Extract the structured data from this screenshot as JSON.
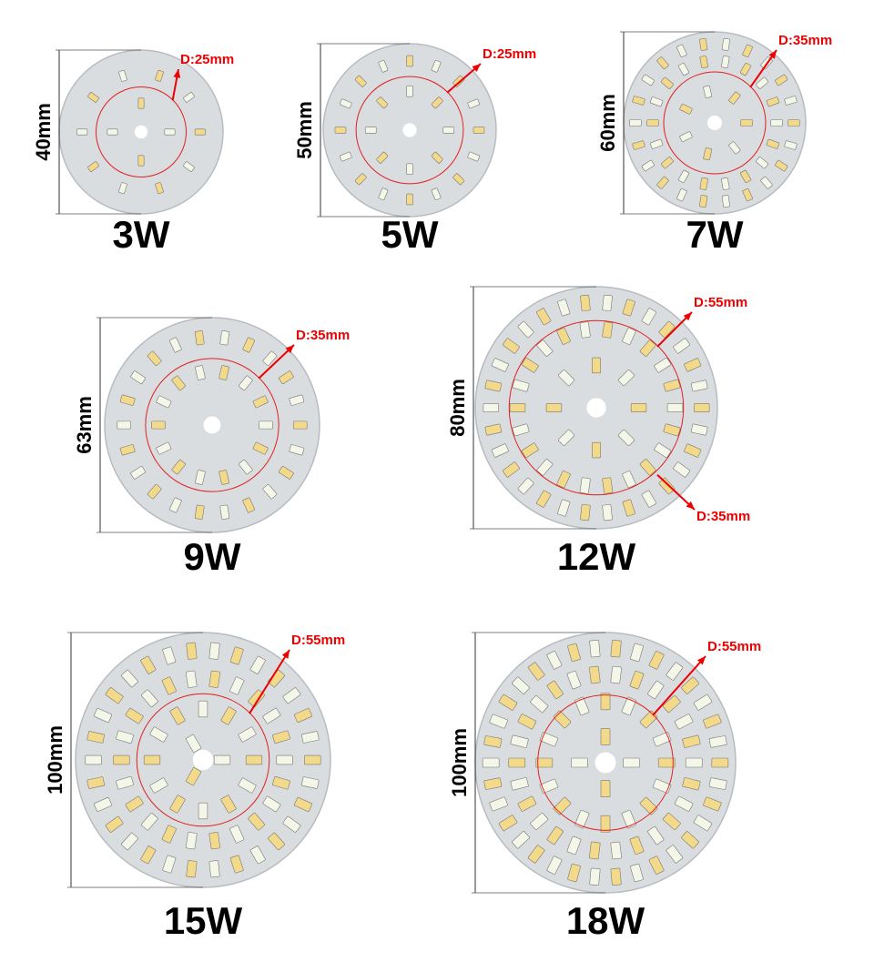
{
  "boards": [
    {
      "power": "3W",
      "size": "40mm",
      "diameters": [
        "D:25mm"
      ]
    },
    {
      "power": "5W",
      "size": "50mm",
      "diameters": [
        "D:25mm"
      ]
    },
    {
      "power": "7W",
      "size": "60mm",
      "diameters": [
        "D:35mm"
      ]
    },
    {
      "power": "9W",
      "size": "63mm",
      "diameters": [
        "D:35mm"
      ]
    },
    {
      "power": "12W",
      "size": "80mm",
      "diameters": [
        "D:55mm",
        "D:35mm"
      ]
    },
    {
      "power": "15W",
      "size": "100mm",
      "diameters": [
        "D:55mm"
      ]
    },
    {
      "power": "18W",
      "size": "100mm",
      "diameters": [
        "D:55mm"
      ]
    }
  ]
}
